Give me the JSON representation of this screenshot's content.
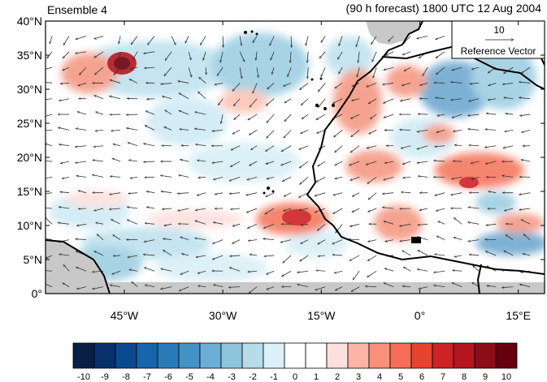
{
  "header": {
    "left_title": "Ensemble 4",
    "right_title": "(90 h forecast) 1800 UTC 12 Aug 2004"
  },
  "map": {
    "lon_range": [
      -57,
      19
    ],
    "lat_range": [
      0,
      40
    ],
    "lat_ticks": [
      "0°",
      "5°N",
      "10°N",
      "15°N",
      "20°N",
      "25°N",
      "30°N",
      "35°N",
      "40°N"
    ],
    "lat_tick_values": [
      0,
      5,
      10,
      15,
      20,
      25,
      30,
      35,
      40
    ],
    "lon_ticks": [
      "45°W",
      "30°W",
      "15°W",
      "0°",
      "15°E"
    ],
    "lon_tick_values": [
      -45,
      -30,
      -15,
      0,
      15
    ],
    "land_color": "#c8c8c8",
    "coast_color": "#000000"
  },
  "reference_vector": {
    "magnitude": "10",
    "label": "Reference Vector"
  },
  "colorbar": {
    "labels": [
      "-10",
      "-9",
      "-8",
      "-7",
      "-6",
      "-5",
      "-4",
      "-3",
      "-2",
      "-1",
      "0",
      "1",
      "2",
      "3",
      "4",
      "5",
      "6",
      "7",
      "8",
      "9",
      "10"
    ],
    "colors": [
      "#0a1f44",
      "#08306b",
      "#0b4a8f",
      "#1765ab",
      "#2b7bba",
      "#4292c6",
      "#6baed6",
      "#8fc4dd",
      "#b6dbe9",
      "#dcf0f8",
      "#ffffff",
      "#ffffff",
      "#fde0dd",
      "#fbb4a6",
      "#f9907a",
      "#f46d54",
      "#e8432f",
      "#cd2226",
      "#b3161f",
      "#8b0d17",
      "#67000d"
    ]
  }
}
